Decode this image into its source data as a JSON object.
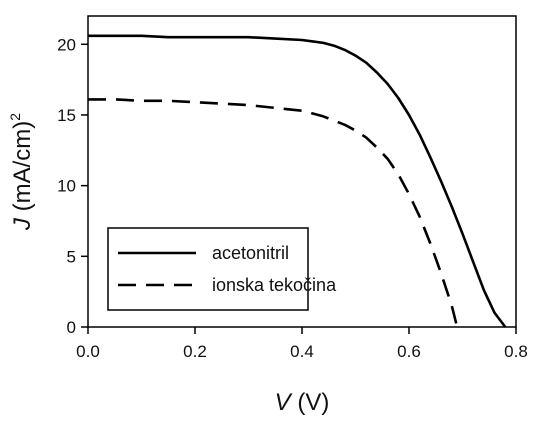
{
  "chart_data": {
    "type": "line",
    "xlabel_italic": "V",
    "xlabel_rest": " (V)",
    "ylabel_italic": "J",
    "ylabel_rest": " (mA/cm)",
    "ylabel_suffix": "2",
    "xlim": [
      0.0,
      0.8
    ],
    "ylim": [
      0,
      22
    ],
    "x_ticks": [
      "0.0",
      "0.2",
      "0.4",
      "0.6",
      "0.8"
    ],
    "y_ticks": [
      "0",
      "5",
      "10",
      "15",
      "20"
    ],
    "grid": false,
    "legend_placement": "lower-left",
    "series": [
      {
        "name": "acetonitril",
        "style": "solid",
        "color": "#000000",
        "x": [
          0.0,
          0.05,
          0.1,
          0.15,
          0.2,
          0.25,
          0.3,
          0.35,
          0.4,
          0.42,
          0.44,
          0.46,
          0.48,
          0.5,
          0.52,
          0.54,
          0.56,
          0.58,
          0.6,
          0.62,
          0.64,
          0.66,
          0.68,
          0.7,
          0.72,
          0.74,
          0.76,
          0.78
        ],
        "y": [
          20.6,
          20.6,
          20.6,
          20.5,
          20.5,
          20.5,
          20.5,
          20.4,
          20.3,
          20.2,
          20.1,
          19.9,
          19.6,
          19.2,
          18.7,
          18.0,
          17.2,
          16.2,
          15.0,
          13.6,
          12.0,
          10.3,
          8.5,
          6.6,
          4.6,
          2.6,
          1.0,
          0.0
        ]
      },
      {
        "name": "ionska tekočina",
        "style": "dashed",
        "color": "#000000",
        "x": [
          0.0,
          0.05,
          0.1,
          0.15,
          0.2,
          0.25,
          0.3,
          0.35,
          0.4,
          0.42,
          0.44,
          0.46,
          0.48,
          0.5,
          0.52,
          0.54,
          0.56,
          0.58,
          0.6,
          0.62,
          0.64,
          0.66,
          0.68,
          0.69
        ],
        "y": [
          16.1,
          16.1,
          16.0,
          16.0,
          15.9,
          15.8,
          15.7,
          15.5,
          15.3,
          15.1,
          14.9,
          14.6,
          14.3,
          13.9,
          13.4,
          12.7,
          11.9,
          10.8,
          9.4,
          7.8,
          5.9,
          3.8,
          1.5,
          0.0
        ]
      }
    ]
  }
}
